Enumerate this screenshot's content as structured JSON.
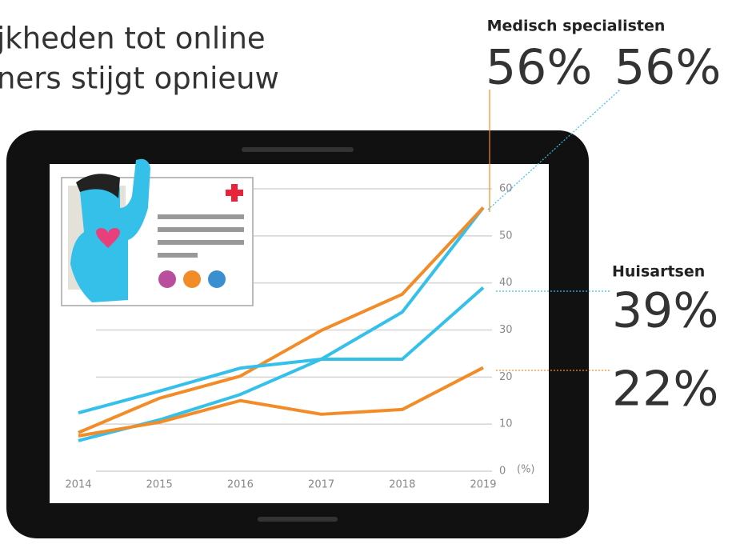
{
  "chart_data": {
    "type": "line",
    "title_lines": [
      "jkheden tot online",
      "ners stijgt opnieuw"
    ],
    "annotations": [
      "Medisch specialisten",
      "56%",
      "56%",
      "Huisartsen",
      "39%",
      "22%"
    ],
    "categories": [
      "2014",
      "2015",
      "2016",
      "2017",
      "2018",
      "2019"
    ],
    "series": [
      {
        "color": "#35c0ea",
        "values": [
          6.5,
          10.9,
          16.3,
          23.8,
          33.8,
          56
        ]
      },
      {
        "color": "#f28c28",
        "values": [
          8.2,
          15.5,
          20.2,
          29.9,
          37.6,
          56
        ]
      },
      {
        "color": "#35c0ea",
        "values": [
          12.4,
          17,
          21.9,
          23.8,
          23.8,
          39
        ]
      },
      {
        "color": "#f28c28",
        "values": [
          7.5,
          10.4,
          15,
          12.1,
          13.1,
          22
        ]
      }
    ],
    "ylim": [
      0,
      60
    ],
    "yticks": [
      0,
      10,
      20,
      30,
      40,
      50,
      60
    ],
    "y_unit": "(%)",
    "grid": true
  }
}
